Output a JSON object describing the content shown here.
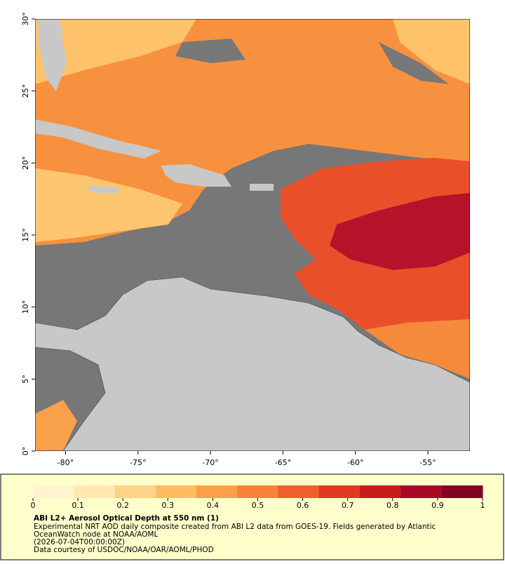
{
  "map": {
    "lonlim": [
      -82.1,
      -52.1
    ],
    "latlim": [
      0,
      30
    ],
    "lon_ticks": [
      {
        "value": -80,
        "label": "-80°"
      },
      {
        "value": -75,
        "label": "-75°"
      },
      {
        "value": -70,
        "label": "-70°"
      },
      {
        "value": -65,
        "label": "-65°"
      },
      {
        "value": -60,
        "label": "-60°"
      },
      {
        "value": -55,
        "label": "-55°"
      }
    ],
    "lat_ticks": [
      {
        "value": 0,
        "label": "0°"
      },
      {
        "value": 5,
        "label": "5°"
      },
      {
        "value": 10,
        "label": "10°"
      },
      {
        "value": 15,
        "label": "15°"
      },
      {
        "value": 20,
        "label": "20°"
      },
      {
        "value": 25,
        "label": "25°"
      },
      {
        "value": 30,
        "label": "30°"
      }
    ]
  },
  "colorbar": {
    "lim": [
      0,
      1
    ],
    "ticks": [
      0,
      0.1,
      0.2,
      0.3,
      0.4,
      0.5,
      0.6,
      0.7,
      0.8,
      0.9,
      1
    ],
    "colors": [
      "#fff4cf",
      "#ffe8b0",
      "#fed389",
      "#fdbb62",
      "#fc9f48",
      "#f8823a",
      "#ee5f2c",
      "#de3b21",
      "#c81a1c",
      "#a60a24",
      "#800026"
    ]
  },
  "caption": {
    "title": "ABI L2+ Aerosol Optical Depth at 550 nm (1)",
    "lines": [
      "Experimental NRT AOD daily composite created from ABI L2 data from GOES-19. Fields generated by Atlantic",
      "OceanWatch node at NOAA/AOML",
      "(2026-07-04T00:00:00Z)",
      "Data courtesy of USDOC/NOAA/OAR/AOML/PHOD"
    ]
  }
}
